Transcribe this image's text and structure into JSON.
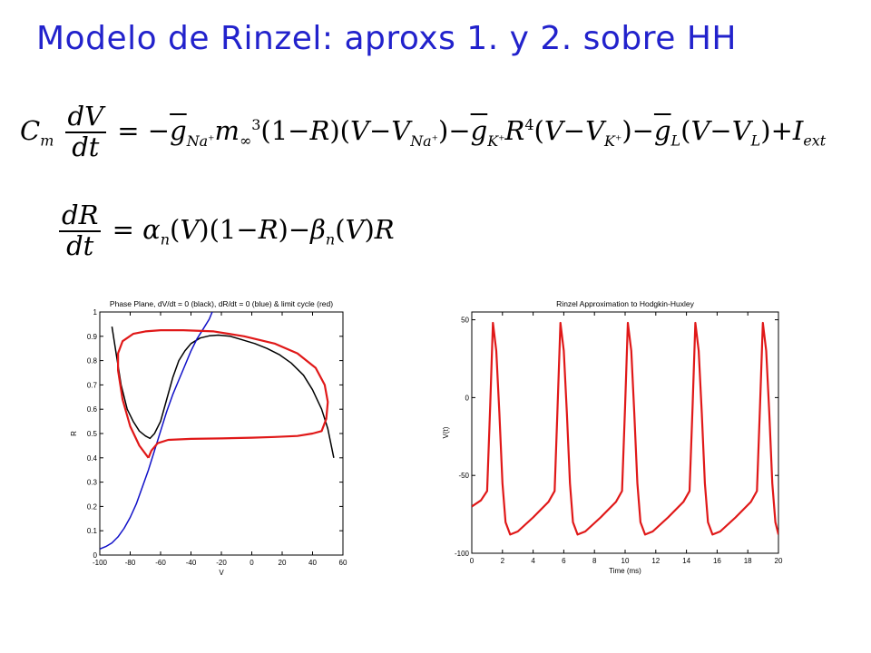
{
  "slide_title": "Modelo de Rinzel: aproxs 1. y 2. sobre HH",
  "colors": {
    "title": "#2222cc",
    "red": "#e01818",
    "blue": "#1010c8",
    "black": "#000000"
  },
  "chart_data": [
    {
      "type": "line",
      "title": "Phase Plane, dV/dt = 0 (black), dR/dt = 0 (blue) & limit cycle (red)",
      "xlabel": "V",
      "ylabel": "R",
      "xlim": [
        -100,
        60
      ],
      "ylim": [
        0,
        1
      ],
      "xticks": [
        -100,
        -80,
        -60,
        -40,
        -20,
        0,
        20,
        40,
        60
      ],
      "yticks": [
        0,
        0.1,
        0.2,
        0.3,
        0.4,
        0.5,
        0.6,
        0.7,
        0.8,
        0.9,
        1
      ],
      "grid": false,
      "series": [
        {
          "color": "black",
          "x": [
            -92,
            -89,
            -86,
            -82,
            -78,
            -74,
            -70,
            -67,
            -64,
            -60,
            -56,
            -52,
            -48,
            -44,
            -40,
            -34,
            -28,
            -22,
            -14,
            -6,
            2,
            10,
            18,
            26,
            34,
            40,
            46,
            50,
            54
          ],
          "y": [
            0.94,
            0.82,
            0.7,
            0.6,
            0.55,
            0.51,
            0.49,
            0.48,
            0.5,
            0.55,
            0.64,
            0.73,
            0.8,
            0.84,
            0.87,
            0.893,
            0.902,
            0.905,
            0.9,
            0.885,
            0.87,
            0.85,
            0.825,
            0.79,
            0.74,
            0.68,
            0.6,
            0.52,
            0.4
          ]
        },
        {
          "color": "blue",
          "x": [
            -100,
            -96,
            -92,
            -88,
            -84,
            -80,
            -76,
            -72,
            -68,
            -64,
            -60,
            -56,
            -52,
            -48,
            -44,
            -40,
            -36,
            -32,
            -28,
            -26
          ],
          "y": [
            0.025,
            0.035,
            0.05,
            0.075,
            0.11,
            0.155,
            0.21,
            0.28,
            0.35,
            0.43,
            0.51,
            0.59,
            0.66,
            0.72,
            0.78,
            0.84,
            0.89,
            0.93,
            0.97,
            1
          ]
        },
        {
          "color": "red",
          "x": [
            -68,
            -74,
            -80,
            -85,
            -88,
            -88,
            -85,
            -78,
            -70,
            -60,
            -45,
            -25,
            -5,
            15,
            30,
            42,
            48,
            50,
            49,
            46,
            40,
            30,
            15,
            0,
            -20,
            -40,
            -55,
            -62,
            -66,
            -68
          ],
          "y": [
            0.4,
            0.45,
            0.53,
            0.64,
            0.76,
            0.83,
            0.88,
            0.91,
            0.92,
            0.925,
            0.925,
            0.92,
            0.9,
            0.87,
            0.83,
            0.77,
            0.7,
            0.63,
            0.56,
            0.51,
            0.5,
            0.49,
            0.486,
            0.483,
            0.48,
            0.478,
            0.474,
            0.46,
            0.43,
            0.4
          ]
        }
      ]
    },
    {
      "type": "line",
      "title": "Rinzel Approximation to Hodgkin-Huxley",
      "xlabel": "Time (ms)",
      "ylabel": "V(t)",
      "xlim": [
        0,
        20
      ],
      "ylim": [
        -100,
        55
      ],
      "xticks": [
        0,
        2,
        4,
        6,
        8,
        10,
        12,
        14,
        16,
        18,
        20
      ],
      "yticks": [
        -100,
        -50,
        0,
        50
      ],
      "grid": false,
      "series": [
        {
          "color": "red",
          "x": [
            0,
            0.6,
            1.0,
            1.2,
            1.38,
            1.6,
            1.8,
            2.0,
            2.2,
            2.5,
            3.0,
            4.0,
            5.0,
            5.4,
            5.6,
            5.78,
            6.0,
            6.2,
            6.4,
            6.6,
            6.9,
            7.4,
            8.4,
            9.4,
            9.8,
            10.0,
            10.18,
            10.4,
            10.6,
            10.8,
            11.0,
            11.3,
            11.8,
            12.8,
            13.8,
            14.2,
            14.4,
            14.58,
            14.8,
            15.0,
            15.2,
            15.4,
            15.7,
            16.2,
            17.2,
            18.2,
            18.6,
            18.8,
            18.98,
            19.2,
            19.4,
            19.6,
            19.8,
            20.0
          ],
          "y": [
            -70,
            -66,
            -60,
            -5,
            48,
            30,
            -10,
            -55,
            -80,
            -88,
            -86,
            -77,
            -67,
            -60,
            -5,
            48,
            30,
            -10,
            -55,
            -80,
            -88,
            -86,
            -77,
            -67,
            -60,
            -5,
            48,
            30,
            -10,
            -55,
            -80,
            -88,
            -86,
            -77,
            -67,
            -60,
            -5,
            48,
            30,
            -10,
            -55,
            -80,
            -88,
            -86,
            -77,
            -67,
            -60,
            -5,
            48,
            30,
            -10,
            -55,
            -80,
            -88
          ]
        }
      ]
    }
  ]
}
